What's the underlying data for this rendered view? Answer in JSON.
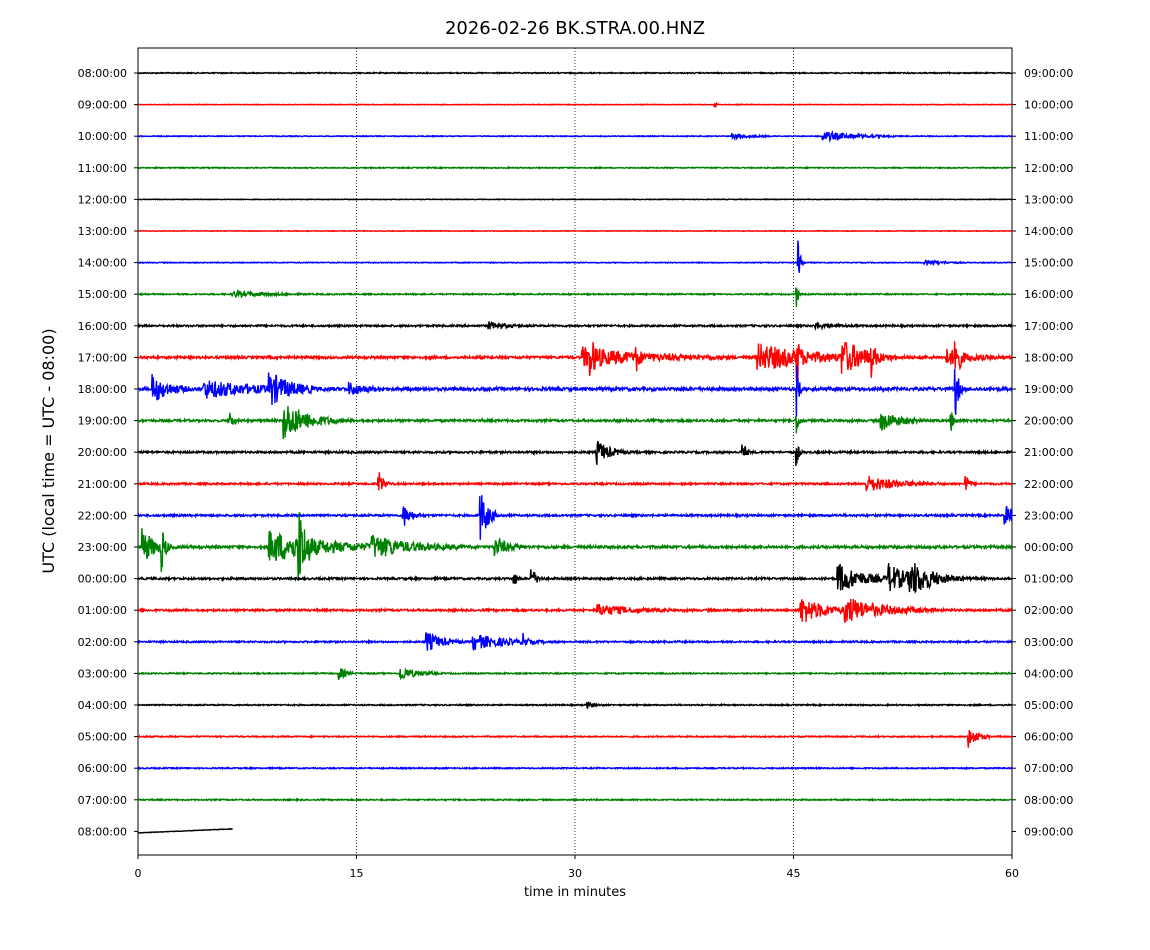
{
  "chart_data": {
    "type": "line",
    "title": "2026-02-26 BK.STRA.00.HNZ",
    "xlabel": "time in minutes",
    "ylabel": "UTC (local time = UTC - 08:00)",
    "xlim": [
      0,
      60
    ],
    "x_ticks": [
      "0",
      "15",
      "30",
      "45",
      "60"
    ],
    "vertical_grid_minutes": [
      15,
      30,
      45
    ],
    "grid": "vertical dotted",
    "trace_colors": [
      "#000000",
      "#ff0000",
      "#0000ff",
      "#008000"
    ],
    "left_labels": [
      "08:00:00",
      "09:00:00",
      "10:00:00",
      "11:00:00",
      "12:00:00",
      "13:00:00",
      "14:00:00",
      "15:00:00",
      "16:00:00",
      "17:00:00",
      "18:00:00",
      "19:00:00",
      "20:00:00",
      "21:00:00",
      "22:00:00",
      "23:00:00",
      "00:00:00",
      "01:00:00",
      "02:00:00",
      "03:00:00",
      "04:00:00",
      "05:00:00",
      "06:00:00",
      "07:00:00",
      "08:00:00"
    ],
    "right_labels": [
      "09:00:00",
      "10:00:00",
      "11:00:00",
      "12:00:00",
      "13:00:00",
      "14:00:00",
      "15:00:00",
      "16:00:00",
      "17:00:00",
      "18:00:00",
      "19:00:00",
      "20:00:00",
      "21:00:00",
      "22:00:00",
      "23:00:00",
      "00:00:00",
      "01:00:00",
      "02:00:00",
      "03:00:00",
      "04:00:00",
      "05:00:00",
      "06:00:00",
      "07:00:00",
      "08:00:00",
      "09:00:00"
    ],
    "last_trace_end_minute": 6.5,
    "noise_levels": [
      0.5,
      0.3,
      0.4,
      0.5,
      0.3,
      0.3,
      0.4,
      0.6,
      0.9,
      1.2,
      1.6,
      1.1,
      1.0,
      0.9,
      1.0,
      1.3,
      1.0,
      1.0,
      0.8,
      0.6,
      0.6,
      0.6,
      0.6,
      0.6,
      0.5
    ],
    "events": [
      {
        "row": 1,
        "minute": 39.6,
        "amp": 4,
        "dur": 0.1
      },
      {
        "row": 2,
        "minute": 40.8,
        "amp": 3,
        "dur": 1.0
      },
      {
        "row": 2,
        "minute": 47.0,
        "amp": 5,
        "dur": 2.0
      },
      {
        "row": 6,
        "minute": 45.3,
        "amp": 22,
        "dur": 0.15
      },
      {
        "row": 6,
        "minute": 54.0,
        "amp": 3,
        "dur": 1.0
      },
      {
        "row": 7,
        "minute": 6.5,
        "amp": 3,
        "dur": 2.0
      },
      {
        "row": 7,
        "minute": 45.2,
        "amp": 16,
        "dur": 0.1
      },
      {
        "row": 8,
        "minute": 24.0,
        "amp": 4,
        "dur": 1.0
      },
      {
        "row": 8,
        "minute": 46.5,
        "amp": 3,
        "dur": 1.0
      },
      {
        "row": 9,
        "minute": 31.0,
        "amp": 14,
        "dur": 0.3
      },
      {
        "row": 9,
        "minute": 34.2,
        "amp": 14,
        "dur": 0.15
      },
      {
        "row": 9,
        "minute": 30.5,
        "amp": 10,
        "dur": 4.0
      },
      {
        "row": 9,
        "minute": 42.5,
        "amp": 14,
        "dur": 3.5
      },
      {
        "row": 9,
        "minute": 45.2,
        "amp": 28,
        "dur": 0.15
      },
      {
        "row": 9,
        "minute": 48.3,
        "amp": 16,
        "dur": 1.5
      },
      {
        "row": 9,
        "minute": 50.3,
        "amp": 16,
        "dur": 0.2
      },
      {
        "row": 9,
        "minute": 56.1,
        "amp": 28,
        "dur": 0.2
      },
      {
        "row": 9,
        "minute": 55.5,
        "amp": 8,
        "dur": 1.5
      },
      {
        "row": 10,
        "minute": 1.0,
        "amp": 14,
        "dur": 1.0
      },
      {
        "row": 10,
        "minute": 4.5,
        "amp": 9,
        "dur": 3.0
      },
      {
        "row": 10,
        "minute": 9.0,
        "amp": 16,
        "dur": 1.2
      },
      {
        "row": 10,
        "minute": 14.5,
        "amp": 6,
        "dur": 1.0
      },
      {
        "row": 10,
        "minute": 45.2,
        "amp": 28,
        "dur": 0.15
      },
      {
        "row": 10,
        "minute": 56.1,
        "amp": 30,
        "dur": 0.2
      },
      {
        "row": 11,
        "minute": 6.3,
        "amp": 12,
        "dur": 0.2
      },
      {
        "row": 11,
        "minute": 10.0,
        "amp": 20,
        "dur": 1.5
      },
      {
        "row": 11,
        "minute": 45.2,
        "amp": 14,
        "dur": 0.15
      },
      {
        "row": 11,
        "minute": 51.0,
        "amp": 10,
        "dur": 1.2
      },
      {
        "row": 11,
        "minute": 55.8,
        "amp": 12,
        "dur": 0.2
      },
      {
        "row": 12,
        "minute": 31.5,
        "amp": 12,
        "dur": 0.8
      },
      {
        "row": 12,
        "minute": 41.5,
        "amp": 12,
        "dur": 0.2
      },
      {
        "row": 12,
        "minute": 45.2,
        "amp": 14,
        "dur": 0.15
      },
      {
        "row": 13,
        "minute": 16.5,
        "amp": 14,
        "dur": 0.3
      },
      {
        "row": 13,
        "minute": 50.0,
        "amp": 8,
        "dur": 2.0
      },
      {
        "row": 13,
        "minute": 56.8,
        "amp": 12,
        "dur": 0.2
      },
      {
        "row": 14,
        "minute": 18.2,
        "amp": 12,
        "dur": 0.5
      },
      {
        "row": 14,
        "minute": 23.5,
        "amp": 26,
        "dur": 0.5
      },
      {
        "row": 14,
        "minute": 59.5,
        "amp": 10,
        "dur": 0.8
      },
      {
        "row": 15,
        "minute": 0.3,
        "amp": 18,
        "dur": 0.8
      },
      {
        "row": 15,
        "minute": 1.6,
        "amp": 24,
        "dur": 0.2
      },
      {
        "row": 15,
        "minute": 9.0,
        "amp": 16,
        "dur": 3.5
      },
      {
        "row": 15,
        "minute": 11.0,
        "amp": 36,
        "dur": 0.4
      },
      {
        "row": 15,
        "minute": 16.0,
        "amp": 10,
        "dur": 2.5
      },
      {
        "row": 15,
        "minute": 24.5,
        "amp": 10,
        "dur": 0.8
      },
      {
        "row": 16,
        "minute": 25.8,
        "amp": 8,
        "dur": 0.2
      },
      {
        "row": 16,
        "minute": 27.0,
        "amp": 12,
        "dur": 0.3
      },
      {
        "row": 16,
        "minute": 48.0,
        "amp": 16,
        "dur": 1.5
      },
      {
        "row": 16,
        "minute": 51.5,
        "amp": 14,
        "dur": 1.5
      },
      {
        "row": 16,
        "minute": 53.0,
        "amp": 14,
        "dur": 1.5
      },
      {
        "row": 17,
        "minute": 31.5,
        "amp": 6,
        "dur": 2.0
      },
      {
        "row": 17,
        "minute": 45.5,
        "amp": 14,
        "dur": 1.5
      },
      {
        "row": 17,
        "minute": 48.5,
        "amp": 12,
        "dur": 2.5
      },
      {
        "row": 18,
        "minute": 19.8,
        "amp": 10,
        "dur": 1.0
      },
      {
        "row": 18,
        "minute": 23.0,
        "amp": 8,
        "dur": 2.0
      },
      {
        "row": 18,
        "minute": 26.4,
        "amp": 8,
        "dur": 0.2
      },
      {
        "row": 19,
        "minute": 13.8,
        "amp": 7,
        "dur": 0.4
      },
      {
        "row": 19,
        "minute": 18.0,
        "amp": 7,
        "dur": 1.0
      },
      {
        "row": 20,
        "minute": 30.8,
        "amp": 3,
        "dur": 0.5
      },
      {
        "row": 21,
        "minute": 57.0,
        "amp": 11,
        "dur": 0.6
      }
    ]
  }
}
